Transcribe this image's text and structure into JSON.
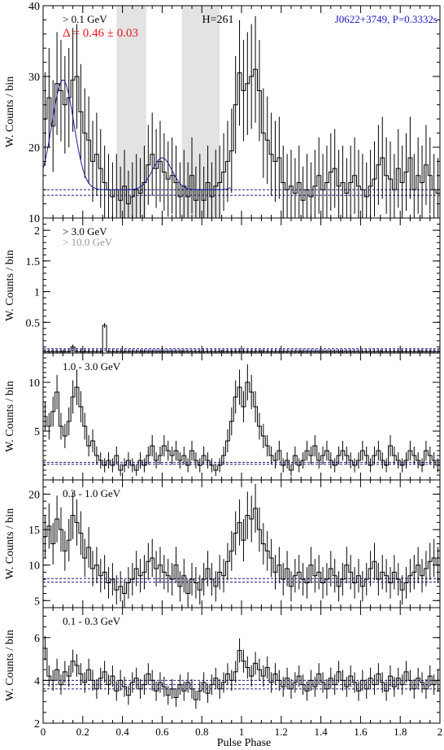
{
  "chart_data": [
    {
      "type": "line",
      "energy_label": "> 0.1 GeV",
      "delta_label": "Δ = 0.46 ± 0.03",
      "h_label": "H=261",
      "pulsar_label": "J0622+3749, P=0.3332s",
      "ylabel": "W. Counts / bin",
      "xlim": [
        0,
        2
      ],
      "ylim": [
        10,
        40
      ],
      "yticks": [
        10,
        20,
        30,
        40
      ],
      "bg_levels": [
        13.2,
        14.0
      ],
      "shaded_regions": [
        [
          0.37,
          0.52
        ],
        [
          0.7,
          0.89
        ]
      ],
      "series": [
        {
          "values": [
            24.0,
            27.0,
            23.0,
            29.0,
            28.0,
            26.0,
            27.0,
            29.5,
            30.0,
            25.0,
            22.0,
            21.0,
            18.0,
            19.0,
            17.0,
            15.0,
            14.0,
            13.0,
            14.0,
            12.5,
            14.5,
            12.0,
            13.0,
            14.0,
            13.5,
            15.0,
            17.5,
            19.0,
            17.0,
            18.0,
            16.5,
            15.5,
            16.0,
            15.0,
            13.0,
            14.5,
            13.0,
            16.0,
            12.5,
            14.0,
            12.5,
            15.0,
            13.0,
            14.5,
            15.0,
            16.5,
            18.0,
            19.5,
            26.0,
            30.5,
            28.0,
            29.0,
            30.0,
            31.0,
            28.0,
            22.0,
            21.0,
            19.0,
            18.0,
            18.5,
            15.0,
            14.0,
            14.5,
            13.5,
            15.0,
            12.5,
            14.0,
            13.0,
            14.5,
            16.0,
            14.0,
            15.0,
            16.5,
            17.0,
            14.5,
            15.0,
            13.5,
            15.0,
            16.0,
            14.5,
            14.0,
            13.0,
            14.5,
            15.5,
            17.5,
            18.5,
            16.0,
            15.5,
            14.0,
            17.0,
            15.0,
            16.5,
            18.5,
            14.0,
            16.0,
            15.0,
            17.5,
            16.0,
            14.0,
            13.5
          ]
        }
      ]
    },
    {
      "type": "line",
      "energy_label": "> 3.0 GeV",
      "energy_label_2": "> 10.0 GeV",
      "ylabel": "W. Counts / bin",
      "xlim": [
        0,
        2
      ],
      "ylim": [
        0,
        2.2
      ],
      "yticks": [
        0.5,
        1,
        1.5,
        2
      ],
      "bg_levels": [
        0.04,
        0.07
      ],
      "series": [
        {
          "values": [
            0.02,
            0.02,
            0.02,
            0.02,
            0.02,
            0.02,
            0.02,
            0.1,
            0.02,
            0.02,
            0.02,
            0.02,
            0.02,
            0.02,
            0.02,
            0.45,
            0.02,
            0.02,
            0.02,
            0.02,
            0.02,
            0.02,
            0.02,
            0.02,
            0.02,
            0.02,
            0.02,
            0.02,
            0.02,
            0.02,
            0.02,
            0.02,
            0.02,
            0.02,
            0.02,
            0.02,
            0.02,
            0.02,
            0.02,
            0.02,
            0.02,
            0.02,
            0.02,
            0.02,
            0.02,
            0.02,
            0.02,
            0.02,
            0.02,
            0.02,
            0.02,
            0.02,
            0.02,
            0.02,
            0.02,
            0.02,
            0.02,
            0.02,
            0.02,
            0.02,
            0.02,
            0.02,
            0.02,
            0.02,
            0.02,
            0.02,
            0.02,
            0.02,
            0.02,
            0.02,
            0.02,
            0.02,
            0.02,
            0.02,
            0.02,
            0.02,
            0.02,
            0.02,
            0.02,
            0.02,
            0.02,
            0.02,
            0.02,
            0.02,
            0.02,
            0.02,
            0.02,
            0.02,
            0.02,
            0.02,
            0.02,
            0.02,
            0.02,
            0.02,
            0.02,
            0.02,
            0.02,
            0.02,
            0.02,
            0.02
          ]
        }
      ]
    },
    {
      "type": "line",
      "energy_label": "1.0 - 3.0 GeV",
      "ylabel": "W. Counts / bin",
      "xlim": [
        0,
        2
      ],
      "ylim": [
        0,
        13
      ],
      "yticks": [
        5,
        10
      ],
      "bg_levels": [
        1.6,
        1.8
      ],
      "series": [
        {
          "values": [
            6.5,
            5.5,
            7.0,
            9.0,
            5.5,
            4.5,
            6.0,
            8.5,
            9.5,
            7.5,
            5.5,
            3.5,
            4.0,
            2.5,
            2.0,
            1.5,
            2.0,
            1.5,
            2.5,
            1.0,
            1.5,
            2.0,
            1.5,
            1.0,
            2.0,
            1.5,
            2.5,
            3.5,
            2.0,
            2.5,
            3.5,
            3.0,
            2.5,
            3.0,
            2.0,
            2.5,
            1.5,
            3.0,
            2.0,
            1.5,
            2.5,
            2.0,
            1.5,
            1.0,
            1.5,
            2.5,
            4.0,
            6.0,
            8.5,
            9.5,
            7.5,
            10.0,
            9.0,
            7.5,
            5.5,
            4.5,
            3.5,
            2.5,
            2.0,
            3.0,
            1.5,
            2.0,
            1.0,
            2.5,
            1.5,
            2.0,
            3.0,
            2.5,
            3.5,
            2.0,
            2.5,
            3.0,
            2.0,
            1.5,
            2.5,
            3.0,
            2.5,
            2.0,
            1.5,
            2.0,
            3.0,
            2.5,
            1.5,
            2.5,
            3.0,
            2.0,
            1.5,
            3.5,
            2.5,
            2.0,
            1.5,
            2.0,
            3.0,
            2.5,
            2.0,
            1.5,
            3.0,
            2.5,
            2.0,
            1.5
          ]
        }
      ]
    },
    {
      "type": "line",
      "energy_label": "0.3 - 1.0 GeV",
      "ylabel": "W. Counts / bin",
      "xlim": [
        0,
        2
      ],
      "ylim": [
        4,
        22
      ],
      "yticks": [
        5,
        10,
        15,
        20
      ],
      "bg_levels": [
        7.6,
        8.1
      ],
      "series": [
        {
          "values": [
            14.0,
            15.5,
            13.0,
            16.5,
            15.0,
            12.0,
            13.5,
            17.0,
            16.0,
            14.5,
            11.0,
            12.5,
            9.5,
            10.0,
            8.5,
            9.0,
            7.5,
            8.0,
            6.5,
            7.0,
            6.0,
            7.5,
            8.0,
            9.5,
            8.5,
            9.0,
            10.5,
            11.0,
            9.5,
            10.0,
            9.0,
            8.5,
            8.0,
            10.0,
            7.0,
            8.5,
            6.0,
            8.0,
            7.5,
            6.5,
            8.0,
            9.5,
            8.0,
            7.0,
            9.0,
            8.5,
            10.5,
            12.0,
            14.5,
            16.0,
            13.5,
            17.0,
            16.5,
            18.0,
            15.0,
            13.0,
            12.0,
            11.0,
            9.0,
            10.0,
            8.0,
            9.5,
            7.0,
            8.5,
            9.0,
            8.0,
            7.5,
            10.0,
            8.5,
            9.0,
            7.5,
            8.0,
            9.5,
            8.5,
            7.0,
            8.0,
            10.0,
            9.0,
            7.5,
            8.5,
            7.0,
            8.0,
            9.5,
            10.5,
            8.0,
            9.0,
            8.5,
            7.5,
            9.0,
            8.0,
            6.5,
            7.5,
            8.5,
            9.0,
            10.0,
            8.5,
            9.5,
            10.5,
            11.0,
            10.0
          ]
        }
      ]
    },
    {
      "type": "line",
      "energy_label": "0.1 - 0.3 GeV",
      "ylabel": "W. Counts / bin",
      "xticks": [
        0,
        0.2,
        0.4,
        0.6,
        0.8,
        1,
        1.2,
        1.4,
        1.6,
        1.8,
        2
      ],
      "xlabel": "Pulse Phase",
      "xlim": [
        0,
        2
      ],
      "ylim": [
        2,
        7.4
      ],
      "yticks": [
        2,
        4,
        6
      ],
      "bg_levels": [
        3.6,
        3.8,
        4.0
      ],
      "series": [
        {
          "values": [
            5.5,
            4.2,
            4.0,
            4.5,
            3.8,
            4.4,
            4.2,
            4.9,
            4.7,
            4.3,
            3.9,
            4.5,
            4.0,
            3.6,
            4.1,
            4.4,
            3.8,
            4.2,
            3.5,
            4.0,
            3.7,
            3.3,
            3.9,
            4.1,
            3.6,
            3.8,
            4.3,
            4.0,
            3.5,
            3.9,
            3.7,
            3.3,
            3.6,
            3.2,
            3.8,
            3.5,
            3.9,
            3.6,
            3.1,
            3.5,
            3.9,
            3.4,
            3.8,
            4.1,
            3.6,
            3.9,
            4.3,
            4.0,
            4.4,
            5.4,
            4.9,
            4.6,
            4.2,
            4.8,
            4.5,
            4.2,
            4.6,
            3.9,
            4.3,
            4.0,
            3.7,
            4.1,
            3.6,
            3.9,
            4.2,
            3.8,
            3.5,
            4.0,
            3.7,
            4.3,
            3.9,
            3.6,
            4.1,
            3.8,
            4.4,
            4.0,
            3.7,
            4.2,
            3.9,
            3.5,
            4.0,
            3.6,
            4.1,
            3.8,
            4.3,
            3.9,
            3.5,
            4.2,
            3.7,
            4.1,
            3.8,
            4.4,
            4.0,
            3.6,
            4.1,
            3.9,
            3.6,
            4.2,
            3.8,
            4.0
          ]
        }
      ]
    }
  ]
}
